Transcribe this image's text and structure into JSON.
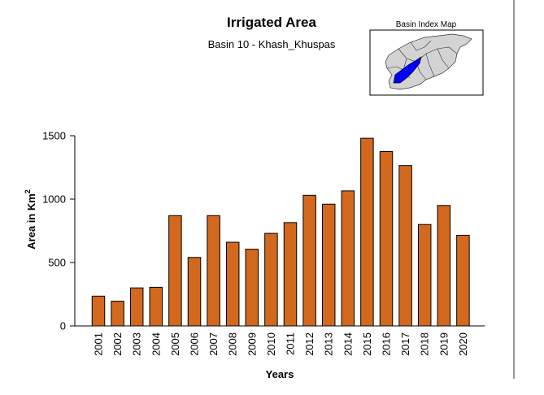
{
  "chart_data": {
    "type": "bar",
    "title": "Irrigated Area",
    "subtitle": "Basin 10 - Khash_Khuspas",
    "xlabel": "Years",
    "ylabel": "Area in Km",
    "ylabel_superscript": "2",
    "categories": [
      "2001",
      "2002",
      "2003",
      "2004",
      "2005",
      "2006",
      "2007",
      "2008",
      "2009",
      "2010",
      "2011",
      "2012",
      "2013",
      "2014",
      "2015",
      "2016",
      "2017",
      "2018",
      "2019",
      "2020"
    ],
    "values": [
      235,
      195,
      300,
      305,
      870,
      540,
      870,
      660,
      605,
      730,
      815,
      1030,
      960,
      1065,
      1480,
      1375,
      1265,
      800,
      950,
      715
    ],
    "yticks": [
      0,
      500,
      1000,
      1500
    ],
    "ylim": [
      0,
      1500
    ],
    "bar_color": "#D2691E",
    "grid": false,
    "inset_map": {
      "title": "Basin Index Map",
      "highlight_color": "#0000FF",
      "basin_fill": "#D3D3D3"
    }
  }
}
